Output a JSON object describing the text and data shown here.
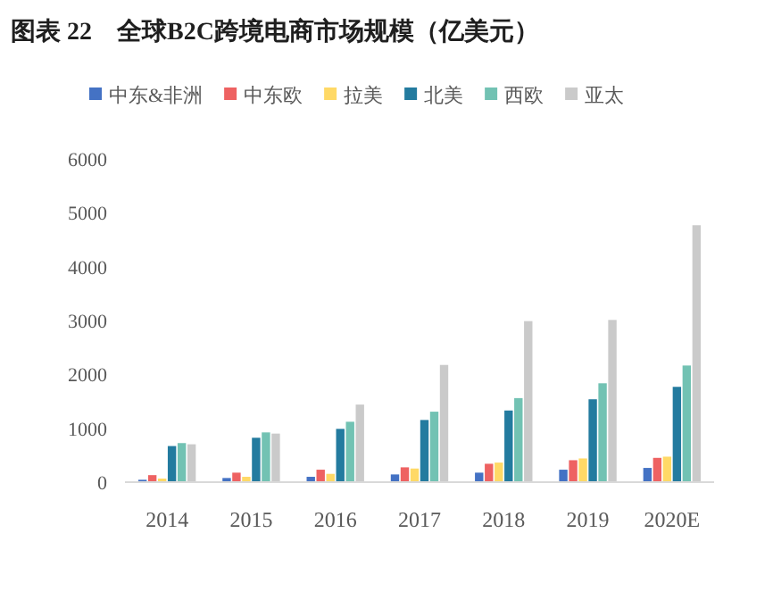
{
  "chart_data": {
    "type": "bar",
    "title": "图表 22　全球B2C跨境电商市场规模（亿美元）",
    "categories": [
      "2014",
      "2015",
      "2016",
      "2017",
      "2018",
      "2019",
      "2020E"
    ],
    "series": [
      {
        "name": "中东&非洲",
        "color": "#4472c4",
        "values": [
          44,
          77,
          99,
          143,
          176,
          231,
          264
        ]
      },
      {
        "name": "中东欧",
        "color": "#ee6262",
        "values": [
          130,
          176,
          231,
          275,
          341,
          407,
          451
        ]
      },
      {
        "name": "拉美",
        "color": "#ffd966",
        "values": [
          66,
          99,
          154,
          253,
          363,
          440,
          473
        ]
      },
      {
        "name": "北美",
        "color": "#237b9f",
        "values": [
          670,
          824,
          989,
          1154,
          1330,
          1538,
          1769
        ]
      },
      {
        "name": "西欧",
        "color": "#72c2b3",
        "values": [
          725,
          923,
          1121,
          1308,
          1560,
          1835,
          2165
        ]
      },
      {
        "name": "亚太",
        "color": "#cacaca",
        "values": [
          703,
          901,
          1440,
          2176,
          2989,
          3011,
          4769
        ]
      }
    ],
    "ylim": [
      0,
      6000
    ],
    "yticks": [
      0,
      1000,
      2000,
      3000,
      4000,
      5000,
      6000
    ],
    "grid": false,
    "legend": "top"
  }
}
